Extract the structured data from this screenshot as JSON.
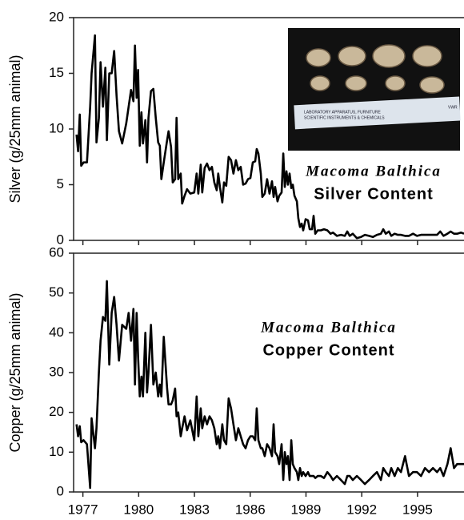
{
  "chart_data": [
    {
      "type": "line",
      "y_label": "Silver (g/25mm animal)",
      "annotation": {
        "species": "Macoma Balthica",
        "label": "Silver Content"
      },
      "inset_text": [
        "LABORATORY APPARATUS, FURNITURE",
        "SCIENTIFIC INSTRUMENTS & CHEMICALS",
        "VWR"
      ],
      "color": "#000000",
      "xlim": [
        1976.5,
        1997.5
      ],
      "ylim": [
        0,
        20
      ],
      "yticks": [
        0,
        5,
        10,
        15,
        20
      ],
      "x": [
        1976.66,
        1976.74,
        1976.83,
        1976.91,
        1977.04,
        1977.22,
        1977.39,
        1977.47,
        1977.65,
        1977.73,
        1977.86,
        1977.95,
        1978.08,
        1978.21,
        1978.29,
        1978.42,
        1978.55,
        1978.68,
        1978.81,
        1978.94,
        1979.11,
        1979.33,
        1979.46,
        1979.59,
        1979.72,
        1979.8,
        1979.89,
        1979.97,
        1980.06,
        1980.15,
        1980.23,
        1980.36,
        1980.45,
        1980.53,
        1980.66,
        1980.79,
        1980.92,
        1981.05,
        1981.14,
        1981.22,
        1981.35,
        1981.53,
        1981.61,
        1981.74,
        1981.83,
        1981.96,
        1982.04,
        1982.13,
        1982.26,
        1982.34,
        1982.47,
        1982.6,
        1982.78,
        1982.99,
        1983.12,
        1983.21,
        1983.34,
        1983.42,
        1983.55,
        1983.68,
        1983.81,
        1983.94,
        1984.07,
        1984.2,
        1984.28,
        1984.37,
        1984.5,
        1984.59,
        1984.71,
        1984.84,
        1984.97,
        1985.1,
        1985.23,
        1985.36,
        1985.49,
        1985.62,
        1985.75,
        1985.88,
        1986.01,
        1986.14,
        1986.27,
        1986.35,
        1986.44,
        1986.57,
        1986.65,
        1986.78,
        1986.91,
        1987.04,
        1987.17,
        1987.26,
        1987.34,
        1987.47,
        1987.56,
        1987.69,
        1987.78,
        1987.86,
        1987.95,
        1988.03,
        1988.12,
        1988.21,
        1988.29,
        1988.38,
        1988.51,
        1988.59,
        1988.68,
        1988.77,
        1988.85,
        1988.98,
        1989.11,
        1989.2,
        1989.33,
        1989.41,
        1989.5,
        1989.63,
        1989.8,
        1989.97,
        1990.15,
        1990.32,
        1990.45,
        1990.66,
        1990.88,
        1991.09,
        1991.22,
        1991.35,
        1991.52,
        1991.74,
        1991.96,
        1992.17,
        1992.39,
        1992.6,
        1992.82,
        1993.03,
        1993.16,
        1993.29,
        1993.46,
        1993.59,
        1993.77,
        1993.94,
        1994.11,
        1994.33,
        1994.54,
        1994.76,
        1994.97,
        1995.19,
        1995.4,
        1995.62,
        1995.83,
        1996.05,
        1996.22,
        1996.4,
        1996.61,
        1996.78,
        1996.96,
        1997.13,
        1997.34,
        1997.5
      ],
      "values": [
        9.5,
        8,
        11.3,
        6.7,
        7,
        7,
        12,
        15,
        18.4,
        8.8,
        11,
        16,
        12,
        15.5,
        9,
        15,
        15,
        17,
        13,
        9.8,
        8.7,
        10.5,
        12,
        13.5,
        12.5,
        17.5,
        12.8,
        15.3,
        8.5,
        11.5,
        8.7,
        10.8,
        7,
        11,
        13.4,
        13.6,
        11,
        8.8,
        8.5,
        5.5,
        7,
        9,
        9.8,
        8.4,
        5.2,
        5.5,
        11,
        5.5,
        6,
        3.3,
        4,
        4.6,
        4.2,
        4.3,
        6,
        4.2,
        6.8,
        4.3,
        6.5,
        6.9,
        6.3,
        6.6,
        5.2,
        4.5,
        6,
        4.8,
        3.4,
        5.2,
        4.9,
        7.5,
        7.2,
        6,
        7.2,
        6.3,
        6.6,
        5,
        5.1,
        5.5,
        5.6,
        7,
        7.1,
        8.2,
        7.8,
        6,
        3.9,
        4.2,
        5.5,
        4.2,
        5.3,
        3.9,
        4.8,
        3.5,
        4,
        4.3,
        7.8,
        4.8,
        6.2,
        5,
        6,
        4.7,
        5,
        4,
        3.5,
        2,
        1.2,
        1.5,
        0.9,
        1.9,
        1.8,
        1,
        1,
        2.2,
        0.6,
        0.9,
        0.9,
        1,
        0.9,
        0.6,
        0.7,
        0.4,
        0.5,
        0.4,
        0.8,
        0.4,
        0.6,
        0.2,
        0.3,
        0.5,
        0.4,
        0.3,
        0.5,
        0.6,
        1,
        0.6,
        0.8,
        0.4,
        0.6,
        0.5,
        0.5,
        0.4,
        0.4,
        0.6,
        0.4,
        0.5,
        0.5,
        0.5,
        0.5,
        0.5,
        0.8,
        0.4,
        0.6,
        0.8,
        0.6,
        0.6,
        0.7,
        0.6
      ]
    },
    {
      "type": "line",
      "y_label": "Copper (g/25mm animal)",
      "annotation": {
        "species": "Macoma Balthica",
        "label": "Copper Content"
      },
      "color": "#000000",
      "xlim": [
        1976.5,
        1997.5
      ],
      "ylim": [
        0,
        60
      ],
      "yticks": [
        0,
        10,
        20,
        30,
        40,
        50,
        60
      ],
      "xticks": [
        1977,
        1980,
        1983,
        1986,
        1989,
        1992,
        1995
      ],
      "x": [
        1976.66,
        1976.74,
        1976.83,
        1976.91,
        1977.04,
        1977.22,
        1977.39,
        1977.47,
        1977.65,
        1977.73,
        1977.86,
        1977.95,
        1978.08,
        1978.21,
        1978.29,
        1978.42,
        1978.55,
        1978.68,
        1978.81,
        1978.94,
        1979.11,
        1979.33,
        1979.46,
        1979.59,
        1979.72,
        1979.8,
        1979.89,
        1979.97,
        1980.06,
        1980.15,
        1980.23,
        1980.36,
        1980.45,
        1980.53,
        1980.66,
        1980.79,
        1980.92,
        1981.05,
        1981.14,
        1981.22,
        1981.35,
        1981.53,
        1981.61,
        1981.74,
        1981.83,
        1981.96,
        1982.04,
        1982.13,
        1982.26,
        1982.34,
        1982.47,
        1982.6,
        1982.78,
        1982.99,
        1983.12,
        1983.21,
        1983.34,
        1983.42,
        1983.55,
        1983.68,
        1983.81,
        1983.94,
        1984.07,
        1984.2,
        1984.28,
        1984.37,
        1984.5,
        1984.59,
        1984.71,
        1984.84,
        1984.97,
        1985.1,
        1985.23,
        1985.36,
        1985.49,
        1985.62,
        1985.75,
        1985.88,
        1986.01,
        1986.14,
        1986.27,
        1986.35,
        1986.44,
        1986.57,
        1986.65,
        1986.78,
        1986.91,
        1987.04,
        1987.17,
        1987.26,
        1987.34,
        1987.47,
        1987.56,
        1987.69,
        1987.78,
        1987.86,
        1987.95,
        1988.03,
        1988.12,
        1988.21,
        1988.29,
        1988.38,
        1988.51,
        1988.59,
        1988.68,
        1988.77,
        1988.85,
        1988.98,
        1989.11,
        1989.2,
        1989.33,
        1989.41,
        1989.5,
        1989.63,
        1989.8,
        1989.97,
        1990.15,
        1990.32,
        1990.45,
        1990.66,
        1990.88,
        1991.09,
        1991.22,
        1991.35,
        1991.52,
        1991.74,
        1991.96,
        1992.17,
        1992.39,
        1992.6,
        1992.82,
        1993.03,
        1993.16,
        1993.29,
        1993.46,
        1993.59,
        1993.77,
        1993.94,
        1994.11,
        1994.33,
        1994.54,
        1994.76,
        1994.97,
        1995.19,
        1995.4,
        1995.62,
        1995.83,
        1996.05,
        1996.22,
        1996.4,
        1996.61,
        1996.78,
        1996.96,
        1997.13,
        1997.34,
        1997.5
      ],
      "values": [
        17,
        14,
        16.5,
        12.5,
        13,
        12,
        1,
        18.5,
        11,
        16,
        30,
        38,
        44,
        43,
        53,
        32,
        45,
        49,
        42,
        33,
        42,
        41,
        45,
        38,
        46,
        27,
        45,
        34,
        24,
        29,
        24,
        40,
        25,
        30,
        42,
        27,
        30,
        24,
        27,
        24,
        39,
        26,
        22,
        22,
        23,
        26,
        19,
        20,
        14,
        16,
        19,
        15.5,
        18,
        13,
        24,
        14,
        21,
        16,
        19,
        17,
        19,
        18,
        16,
        12,
        14,
        11,
        17,
        13,
        12,
        23.5,
        21,
        17,
        13,
        16,
        14,
        12,
        11,
        13,
        14,
        14,
        13,
        21,
        13,
        11,
        11,
        9,
        12,
        11,
        9,
        17,
        10,
        9,
        7,
        12,
        3,
        10,
        7,
        9,
        3,
        13,
        7,
        6,
        5,
        3,
        6,
        4,
        5,
        4,
        5,
        4,
        4,
        4,
        3.5,
        4,
        4,
        3.5,
        5,
        4,
        3,
        4,
        3,
        2,
        4,
        4,
        3,
        4,
        3,
        2,
        3,
        4,
        5,
        3,
        6,
        5,
        4,
        6,
        4,
        6,
        5,
        9,
        4,
        5,
        5,
        4,
        6,
        5,
        6,
        5,
        6,
        4,
        7,
        11,
        6,
        7,
        7,
        7
      ]
    }
  ]
}
